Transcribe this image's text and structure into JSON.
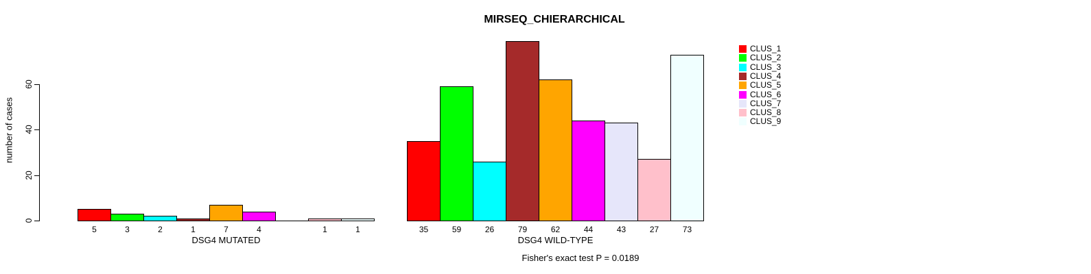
{
  "chart_data": {
    "type": "bar",
    "title": "MIRSEQ_CHIERARCHICAL",
    "ylabel": "number of cases",
    "annotation": "Fisher's exact test P = 0.0189",
    "categories": [
      "DSG4 MUTATED",
      "DSG4 WILD-TYPE"
    ],
    "yticks": [
      0,
      20,
      40,
      60
    ],
    "ylim": [
      0,
      80
    ],
    "grid": false,
    "legend_position": "right",
    "bar_labels_shown": true,
    "series": [
      {
        "name": "CLUS_1",
        "color": "#FF0000",
        "values": [
          5,
          35
        ]
      },
      {
        "name": "CLUS_2",
        "color": "#00FF00",
        "values": [
          3,
          59
        ]
      },
      {
        "name": "CLUS_3",
        "color": "#00FFFF",
        "values": [
          2,
          26
        ]
      },
      {
        "name": "CLUS_4",
        "color": "#A52A2A",
        "values": [
          1,
          79
        ]
      },
      {
        "name": "CLUS_5",
        "color": "#FFA500",
        "values": [
          7,
          62
        ]
      },
      {
        "name": "CLUS_6",
        "color": "#FF00FF",
        "values": [
          4,
          44
        ]
      },
      {
        "name": "CLUS_7",
        "color": "#E6E6FA",
        "values": [
          0,
          43
        ]
      },
      {
        "name": "CLUS_8",
        "color": "#FFC0CB",
        "values": [
          1,
          27
        ]
      },
      {
        "name": "CLUS_9",
        "color": "#F0FFFF",
        "values": [
          1,
          73
        ]
      }
    ]
  }
}
